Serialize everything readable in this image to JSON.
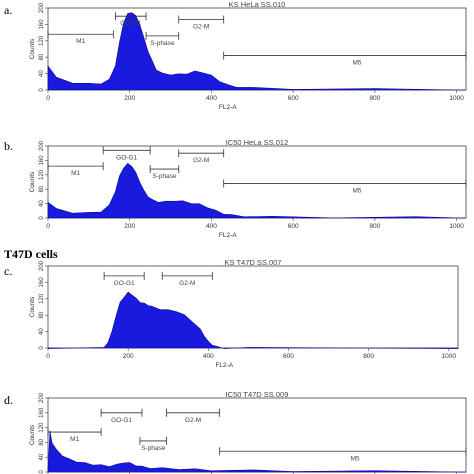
{
  "section_label": "T47D cells",
  "chart_data": [
    {
      "type": "area",
      "panel_label": "a.",
      "title": "KS HeLa SS.010",
      "xlabel": "FL2-A",
      "ylabel": "Counts",
      "xlim": [
        0,
        1023
      ],
      "ylim": [
        0,
        200
      ],
      "xticks": [
        0,
        200,
        400,
        600,
        800,
        1000
      ],
      "yticks": [
        0,
        40,
        80,
        120,
        160,
        200
      ],
      "ytick_labels": [
        "0",
        "40",
        "80",
        "120",
        "160",
        "200"
      ],
      "color": "#1a1adf",
      "series": [
        {
          "x": [
            0,
            20,
            60,
            100,
            130,
            150,
            165,
            175,
            185,
            195,
            205,
            215,
            225,
            235,
            245,
            255,
            265,
            280,
            300,
            320,
            340,
            360,
            380,
            400,
            420,
            440,
            460,
            500,
            600,
            800,
            1023
          ],
          "values": [
            60,
            30,
            18,
            15,
            16,
            25,
            60,
            115,
            165,
            185,
            190,
            180,
            160,
            125,
            95,
            70,
            50,
            40,
            38,
            38,
            40,
            45,
            43,
            35,
            22,
            12,
            8,
            5,
            3,
            2,
            1
          ]
        }
      ],
      "gates": [
        {
          "label": "M1",
          "x": [
            0,
            160
          ]
        },
        {
          "label": "GO-G1",
          "x": [
            165,
            240
          ]
        },
        {
          "label": "S-phase",
          "x": [
            240,
            320
          ]
        },
        {
          "label": "G2-M",
          "x": [
            320,
            430
          ]
        },
        {
          "label": "M5",
          "x": [
            430,
            1023
          ]
        }
      ]
    },
    {
      "type": "area",
      "panel_label": "b.",
      "title": "IC50 HeLa SS.012",
      "xlabel": "FL2-A",
      "ylabel": "Counts",
      "xlim": [
        0,
        1023
      ],
      "ylim": [
        0,
        200
      ],
      "xticks": [
        0,
        200,
        400,
        600,
        800,
        1000
      ],
      "yticks": [
        0,
        40,
        80,
        120,
        160,
        200
      ],
      "ytick_labels": [
        "0",
        "40",
        "80",
        "120",
        "160",
        "200"
      ],
      "color": "#1a1adf",
      "series": [
        {
          "x": [
            0,
            20,
            60,
            100,
            130,
            150,
            165,
            175,
            185,
            195,
            205,
            215,
            225,
            235,
            245,
            255,
            270,
            290,
            310,
            330,
            350,
            370,
            390,
            410,
            430,
            450,
            480,
            550,
            700,
            900,
            1023
          ],
          "values": [
            45,
            25,
            15,
            14,
            18,
            35,
            75,
            115,
            140,
            150,
            145,
            125,
            100,
            75,
            60,
            50,
            45,
            45,
            48,
            46,
            42,
            38,
            30,
            20,
            12,
            8,
            5,
            3,
            2,
            2,
            1
          ]
        }
      ],
      "gates": [
        {
          "label": "M1",
          "x": [
            0,
            135
          ]
        },
        {
          "label": "GO-G1",
          "x": [
            135,
            250
          ]
        },
        {
          "label": "S-phase",
          "x": [
            250,
            320
          ]
        },
        {
          "label": "G2-M",
          "x": [
            320,
            430
          ]
        },
        {
          "label": "M5",
          "x": [
            430,
            1023
          ]
        }
      ]
    },
    {
      "type": "area",
      "panel_label": "c.",
      "title": "KS T47D SS.007",
      "xlabel": "FL2-A",
      "ylabel": "Counts",
      "xlim": [
        0,
        1023
      ],
      "ylim": [
        0,
        200
      ],
      "xticks": [
        0,
        200,
        400,
        600,
        800,
        1000
      ],
      "yticks": [
        0,
        40,
        80,
        120,
        160,
        200
      ],
      "ytick_labels": [
        "0",
        "40",
        "80",
        "120",
        "160",
        "200"
      ],
      "color": "#1a1adf",
      "series": [
        {
          "x": [
            0,
            140,
            150,
            160,
            170,
            180,
            190,
            200,
            210,
            220,
            230,
            240,
            250,
            260,
            280,
            300,
            320,
            340,
            360,
            380,
            390,
            400,
            410,
            420,
            440,
            500,
            1023
          ],
          "values": [
            0,
            0,
            15,
            40,
            80,
            110,
            125,
            135,
            130,
            120,
            112,
            108,
            105,
            100,
            95,
            92,
            90,
            80,
            65,
            45,
            30,
            15,
            8,
            3,
            0,
            0,
            0
          ]
        }
      ],
      "gates": [
        {
          "label": "GO-G1",
          "x": [
            140,
            240
          ]
        },
        {
          "label": "G2-M",
          "x": [
            285,
            410
          ]
        }
      ]
    },
    {
      "type": "area",
      "panel_label": "d.",
      "title": "IC50 T47D SS.009",
      "xlabel": "FL2-A",
      "ylabel": "Counts",
      "xlim": [
        0,
        1023
      ],
      "ylim": [
        0,
        200
      ],
      "xticks": [
        0,
        200,
        400,
        600,
        800,
        1000
      ],
      "yticks": [
        0,
        40,
        80,
        120,
        160,
        200
      ],
      "ytick_labels": [
        "0",
        "40",
        "80",
        "120",
        "160",
        "200"
      ],
      "color": "#1a1adf",
      "series": [
        {
          "x": [
            0,
            5,
            10,
            20,
            35,
            50,
            70,
            90,
            110,
            130,
            150,
            170,
            185,
            200,
            215,
            230,
            250,
            280,
            320,
            360,
            400,
            500,
            600,
            800,
            1023
          ],
          "values": [
            10,
            110,
            80,
            60,
            45,
            35,
            28,
            24,
            20,
            18,
            16,
            20,
            26,
            24,
            18,
            14,
            11,
            10,
            8,
            7,
            5,
            4,
            3,
            2,
            1
          ]
        }
      ],
      "gates": [
        {
          "label": "M1",
          "x": [
            0,
            130
          ]
        },
        {
          "label": "GO-G1",
          "x": [
            130,
            230
          ]
        },
        {
          "label": "S-phase",
          "x": [
            225,
            290
          ]
        },
        {
          "label": "G2-M",
          "x": [
            290,
            420
          ]
        },
        {
          "label": "M5",
          "x": [
            420,
            1023
          ]
        }
      ]
    }
  ]
}
